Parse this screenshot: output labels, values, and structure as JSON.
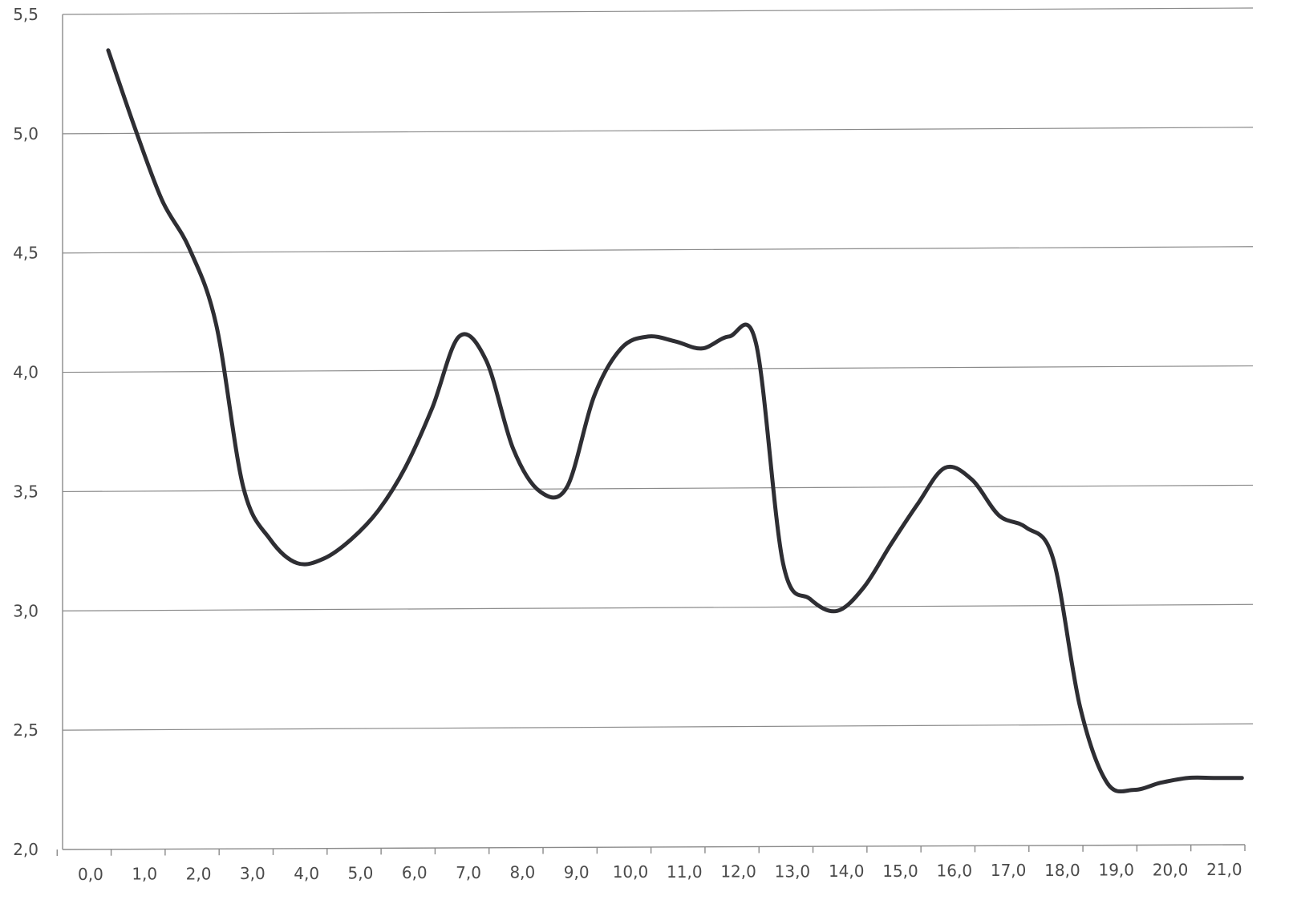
{
  "chart_data": {
    "type": "line",
    "title": "",
    "xlabel": "",
    "ylabel": "",
    "x": [
      0,
      0.5,
      1,
      1.5,
      2,
      2.5,
      3,
      3.5,
      4,
      4.5,
      5,
      5.5,
      6,
      6.5,
      7,
      7.5,
      8,
      8.5,
      9,
      9.5,
      10,
      10.5,
      11,
      11.5,
      12,
      12.5,
      13,
      13.5,
      14,
      14.5,
      15,
      15.5,
      16,
      16.5,
      17,
      17.5,
      18,
      18.5,
      19,
      19.5,
      20,
      20.5,
      21
    ],
    "y": [
      5.35,
      5.02,
      4.72,
      4.52,
      4.2,
      3.52,
      3.3,
      3.2,
      3.22,
      3.3,
      3.42,
      3.6,
      3.85,
      4.15,
      4.05,
      3.68,
      3.5,
      3.52,
      3.9,
      4.1,
      4.15,
      4.13,
      4.1,
      4.15,
      4.12,
      3.2,
      3.05,
      3.0,
      3.1,
      3.28,
      3.45,
      3.6,
      3.55,
      3.4,
      3.35,
      3.22,
      2.6,
      2.28,
      2.25,
      2.28,
      2.3,
      2.3,
      2.3
    ],
    "xlim": [
      -0.4,
      21.5
    ],
    "ylim": [
      2.0,
      5.5
    ],
    "x_ticks": [
      0,
      1,
      2,
      3,
      4,
      5,
      6,
      7,
      8,
      9,
      10,
      11,
      12,
      13,
      14,
      15,
      16,
      17,
      18,
      19,
      20,
      21
    ],
    "x_tick_labels": [
      "0,0",
      "1,0",
      "2,0",
      "3,0",
      "4,0",
      "5,0",
      "6,0",
      "7,0",
      "8,0",
      "9,0",
      "10,0",
      "11,0",
      "12,0",
      "13,0",
      "14,0",
      "15,0",
      "16,0",
      "17,0",
      "18,0",
      "19,0",
      "20,0",
      "21,0"
    ],
    "y_ticks": [
      2.0,
      2.5,
      3.0,
      3.5,
      4.0,
      4.5,
      5.0,
      5.5
    ],
    "y_tick_labels": [
      "2,0",
      "2,5",
      "3,0",
      "3,5",
      "4,0",
      "4,5",
      "5,0",
      "5,5"
    ],
    "grid": true,
    "legend": "none",
    "line_color": "#2e2e33",
    "grid_color": "#8a8a8a"
  }
}
